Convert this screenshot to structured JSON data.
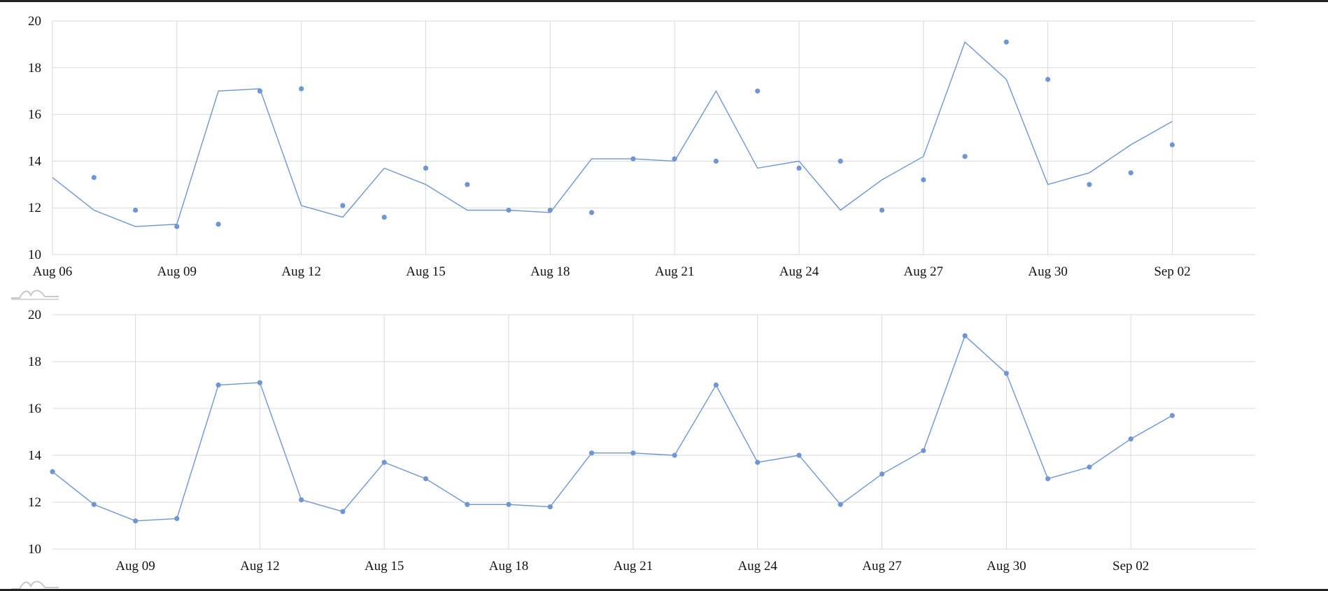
{
  "chart_data": [
    {
      "type": "line",
      "title": "",
      "xlabel": "",
      "ylabel": "",
      "ylim": [
        10,
        20
      ],
      "yticks": [
        10,
        12,
        14,
        16,
        18,
        20
      ],
      "xlim": [
        "2023-08-06",
        "2023-09-04"
      ],
      "xticks": [
        {
          "date": "2023-08-06",
          "label": "Aug 06"
        },
        {
          "date": "2023-08-09",
          "label": "Aug 09"
        },
        {
          "date": "2023-08-12",
          "label": "Aug 12"
        },
        {
          "date": "2023-08-15",
          "label": "Aug 15"
        },
        {
          "date": "2023-08-18",
          "label": "Aug 18"
        },
        {
          "date": "2023-08-21",
          "label": "Aug 21"
        },
        {
          "date": "2023-08-24",
          "label": "Aug 24"
        },
        {
          "date": "2023-08-27",
          "label": "Aug 27"
        },
        {
          "date": "2023-08-30",
          "label": "Aug 30"
        },
        {
          "date": "2023-09-02",
          "label": "Sep 02"
        }
      ],
      "grid": true,
      "series": [
        {
          "kind": "line",
          "color": "#6f96d2",
          "points": [
            [
              "2023-08-06",
              13.3
            ],
            [
              "2023-08-07",
              11.9
            ],
            [
              "2023-08-08",
              11.2
            ],
            [
              "2023-08-09",
              11.3
            ],
            [
              "2023-08-10",
              17.0
            ],
            [
              "2023-08-11",
              17.1
            ],
            [
              "2023-08-12",
              12.1
            ],
            [
              "2023-08-13",
              11.6
            ],
            [
              "2023-08-14",
              13.7
            ],
            [
              "2023-08-15",
              13.0
            ],
            [
              "2023-08-16",
              11.9
            ],
            [
              "2023-08-17",
              11.9
            ],
            [
              "2023-08-18",
              11.8
            ],
            [
              "2023-08-19",
              14.1
            ],
            [
              "2023-08-20",
              14.1
            ],
            [
              "2023-08-21",
              14.0
            ],
            [
              "2023-08-22",
              17.0
            ],
            [
              "2023-08-23",
              13.7
            ],
            [
              "2023-08-24",
              14.0
            ],
            [
              "2023-08-25",
              11.9
            ],
            [
              "2023-08-26",
              13.2
            ],
            [
              "2023-08-27",
              14.2
            ],
            [
              "2023-08-28",
              19.1
            ],
            [
              "2023-08-29",
              17.5
            ],
            [
              "2023-08-30",
              13.0
            ],
            [
              "2023-08-31",
              13.5
            ],
            [
              "2023-09-01",
              14.7
            ],
            [
              "2023-09-02",
              15.7
            ]
          ]
        },
        {
          "kind": "scatter",
          "color": "#6f96d2",
          "points": [
            [
              "2023-08-07",
              13.3
            ],
            [
              "2023-08-08",
              11.9
            ],
            [
              "2023-08-09",
              11.2
            ],
            [
              "2023-08-10",
              11.3
            ],
            [
              "2023-08-11",
              17.0
            ],
            [
              "2023-08-12",
              17.1
            ],
            [
              "2023-08-13",
              12.1
            ],
            [
              "2023-08-14",
              11.6
            ],
            [
              "2023-08-15",
              13.7
            ],
            [
              "2023-08-16",
              13.0
            ],
            [
              "2023-08-17",
              11.9
            ],
            [
              "2023-08-18",
              11.9
            ],
            [
              "2023-08-19",
              11.8
            ],
            [
              "2023-08-20",
              14.1
            ],
            [
              "2023-08-21",
              14.1
            ],
            [
              "2023-08-22",
              14.0
            ],
            [
              "2023-08-23",
              17.0
            ],
            [
              "2023-08-24",
              13.7
            ],
            [
              "2023-08-25",
              14.0
            ],
            [
              "2023-08-26",
              11.9
            ],
            [
              "2023-08-27",
              13.2
            ],
            [
              "2023-08-28",
              14.2
            ],
            [
              "2023-08-29",
              19.1
            ],
            [
              "2023-08-30",
              17.5
            ],
            [
              "2023-08-31",
              13.0
            ],
            [
              "2023-09-01",
              13.5
            ],
            [
              "2023-09-02",
              14.7
            ]
          ]
        }
      ]
    },
    {
      "type": "line",
      "title": "",
      "xlabel": "",
      "ylabel": "",
      "ylim": [
        10,
        20
      ],
      "yticks": [
        10,
        12,
        14,
        16,
        18,
        20
      ],
      "xlim": [
        "2023-08-07",
        "2023-09-05"
      ],
      "xticks": [
        {
          "date": "2023-08-09",
          "label": "Aug 09"
        },
        {
          "date": "2023-08-12",
          "label": "Aug 12"
        },
        {
          "date": "2023-08-15",
          "label": "Aug 15"
        },
        {
          "date": "2023-08-18",
          "label": "Aug 18"
        },
        {
          "date": "2023-08-21",
          "label": "Aug 21"
        },
        {
          "date": "2023-08-24",
          "label": "Aug 24"
        },
        {
          "date": "2023-08-27",
          "label": "Aug 27"
        },
        {
          "date": "2023-08-30",
          "label": "Aug 30"
        },
        {
          "date": "2023-09-02",
          "label": "Sep 02"
        }
      ],
      "grid": true,
      "series": [
        {
          "kind": "line+markers",
          "color": "#6f96d2",
          "points": [
            [
              "2023-08-07",
              13.3
            ],
            [
              "2023-08-08",
              11.9
            ],
            [
              "2023-08-09",
              11.2
            ],
            [
              "2023-08-10",
              11.3
            ],
            [
              "2023-08-11",
              17.0
            ],
            [
              "2023-08-12",
              17.1
            ],
            [
              "2023-08-13",
              12.1
            ],
            [
              "2023-08-14",
              11.6
            ],
            [
              "2023-08-15",
              13.7
            ],
            [
              "2023-08-16",
              13.0
            ],
            [
              "2023-08-17",
              11.9
            ],
            [
              "2023-08-18",
              11.9
            ],
            [
              "2023-08-19",
              11.8
            ],
            [
              "2023-08-20",
              14.1
            ],
            [
              "2023-08-21",
              14.1
            ],
            [
              "2023-08-22",
              14.0
            ],
            [
              "2023-08-23",
              17.0
            ],
            [
              "2023-08-24",
              13.7
            ],
            [
              "2023-08-25",
              14.0
            ],
            [
              "2023-08-26",
              11.9
            ],
            [
              "2023-08-27",
              13.2
            ],
            [
              "2023-08-28",
              14.2
            ],
            [
              "2023-08-29",
              19.1
            ],
            [
              "2023-08-30",
              17.5
            ],
            [
              "2023-08-31",
              13.0
            ],
            [
              "2023-09-01",
              13.5
            ],
            [
              "2023-09-02",
              14.7
            ],
            [
              "2023-09-03",
              15.7
            ]
          ]
        }
      ]
    }
  ]
}
